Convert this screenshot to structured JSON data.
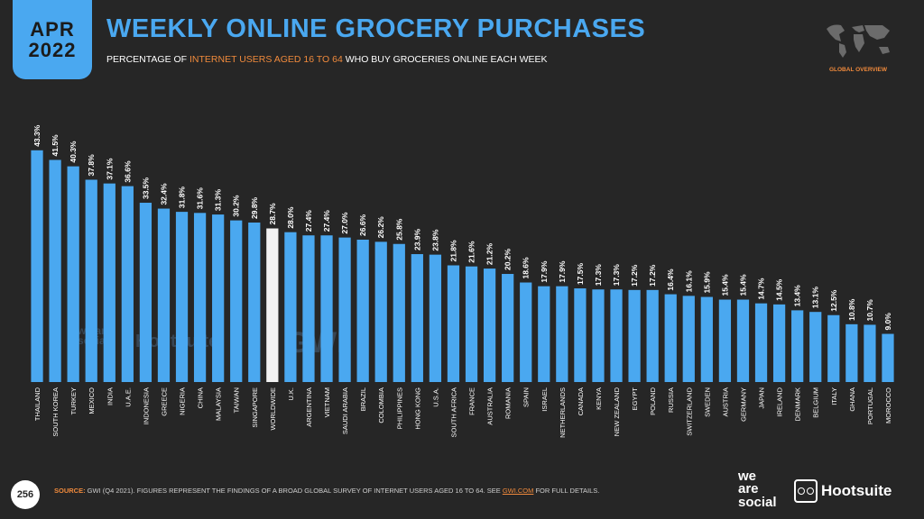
{
  "header": {
    "month": "APR",
    "year": "2022",
    "title": "WEEKLY ONLINE GROCERY PURCHASES",
    "subtitle_pre": "PERCENTAGE OF ",
    "subtitle_hl": "INTERNET USERS AGED  16 TO 64",
    "subtitle_post": " WHO BUY GROCERIES ONLINE EACH WEEK",
    "section": "GLOBAL OVERVIEW"
  },
  "watermarks": {
    "was": "we are social",
    "hootsuite": "Hootsuite",
    "gwi": "GWI."
  },
  "footer": {
    "page": "256",
    "source_label": "SOURCE:",
    "source_text": " GWI (Q4 2021). FIGURES REPRESENT THE FINDINGS OF A BROAD GLOBAL SURVEY OF INTERNET USERS AGED 16 TO 64. SEE ",
    "source_link": "GWI.COM",
    "source_end": " FOR FULL DETAILS.",
    "logo_was_1": "we",
    "logo_was_2": "are",
    "logo_was_3": "social",
    "logo_hootsuite": "Hootsuite"
  },
  "colors": {
    "bar": "#4aa8f0",
    "highlight_bar": "#f2f2f2",
    "accent": "#f08a3c",
    "background": "#262626"
  },
  "chart_data": {
    "type": "bar",
    "highlight": "WORLDWIDE",
    "ylim": [
      0,
      50
    ],
    "categories": [
      "THAILAND",
      "SOUTH KOREA",
      "TURKEY",
      "MEXICO",
      "INDIA",
      "U.A.E.",
      "INDONESIA",
      "GREECE",
      "NIGERIA",
      "CHINA",
      "MALAYSIA",
      "TAIWAN",
      "SINGAPORE",
      "WORLDWIDE",
      "U.K.",
      "ARGENTINA",
      "VIETNAM",
      "SAUDI ARABIA",
      "BRAZIL",
      "COLOMBIA",
      "PHILIPPINES",
      "HONG KONG",
      "U.S.A.",
      "SOUTH AFRICA",
      "FRANCE",
      "AUSTRALIA",
      "ROMANIA",
      "SPAIN",
      "ISRAEL",
      "NETHERLANDS",
      "CANADA",
      "KENYA",
      "NEW ZEALAND",
      "EGYPT",
      "POLAND",
      "RUSSIA",
      "SWITZERLAND",
      "SWEDEN",
      "AUSTRIA",
      "GERMANY",
      "JAPAN",
      "IRELAND",
      "DENMARK",
      "BELGIUM",
      "ITALY",
      "GHANA",
      "PORTUGAL",
      "MOROCCO"
    ],
    "values": [
      43.3,
      41.5,
      40.3,
      37.8,
      37.1,
      36.6,
      33.5,
      32.4,
      31.8,
      31.6,
      31.3,
      30.2,
      29.8,
      28.7,
      28.0,
      27.4,
      27.4,
      27.0,
      26.6,
      26.2,
      25.8,
      23.9,
      23.8,
      21.8,
      21.6,
      21.2,
      20.2,
      18.6,
      17.9,
      17.9,
      17.5,
      17.3,
      17.3,
      17.2,
      17.2,
      16.4,
      16.1,
      15.9,
      15.4,
      15.4,
      14.7,
      14.5,
      13.4,
      13.1,
      12.5,
      10.8,
      10.7,
      9.0
    ],
    "labels": [
      "43.3%",
      "41.5%",
      "40.3%",
      "37.8%",
      "37.1%",
      "36.6%",
      "33.5%",
      "32.4%",
      "31.8%",
      "31.6%",
      "31.3%",
      "30.2%",
      "29.8%",
      "28.7%",
      "28.0%",
      "27.4%",
      "27.4%",
      "27.0%",
      "26.6%",
      "26.2%",
      "25.8%",
      "23.9%",
      "23.8%",
      "21.8%",
      "21.6%",
      "21.2%",
      "20.2%",
      "18.6%",
      "17.9%",
      "17.9%",
      "17.5%",
      "17.3%",
      "17.3%",
      "17.2%",
      "17.2%",
      "16.4%",
      "16.1%",
      "15.9%",
      "15.4%",
      "15.4%",
      "14.7%",
      "14.5%",
      "13.4%",
      "13.1%",
      "12.5%",
      "10.8%",
      "10.7%",
      "9.0%"
    ]
  }
}
